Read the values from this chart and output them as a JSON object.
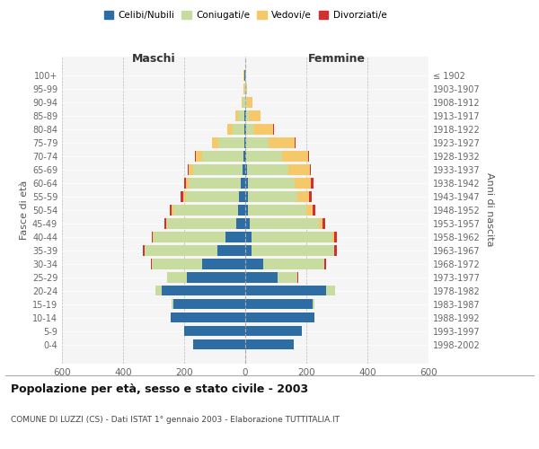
{
  "age_groups": [
    "100+",
    "95-99",
    "90-94",
    "85-89",
    "80-84",
    "75-79",
    "70-74",
    "65-69",
    "60-64",
    "55-59",
    "50-54",
    "45-49",
    "40-44",
    "35-39",
    "30-34",
    "25-29",
    "20-24",
    "15-19",
    "10-14",
    "5-9",
    "0-4"
  ],
  "birth_years": [
    "≤ 1902",
    "1903-1907",
    "1908-1912",
    "1913-1917",
    "1918-1922",
    "1923-1927",
    "1928-1932",
    "1933-1937",
    "1938-1942",
    "1943-1947",
    "1948-1952",
    "1953-1957",
    "1958-1962",
    "1963-1967",
    "1968-1972",
    "1973-1977",
    "1978-1982",
    "1983-1987",
    "1988-1992",
    "1993-1997",
    "1998-2002"
  ],
  "maschi": {
    "celibi": [
      2,
      1,
      1,
      2,
      2,
      3,
      5,
      10,
      15,
      20,
      25,
      30,
      65,
      90,
      140,
      190,
      275,
      235,
      245,
      200,
      170
    ],
    "coniugati": [
      2,
      3,
      8,
      22,
      38,
      85,
      135,
      160,
      170,
      175,
      210,
      225,
      235,
      240,
      165,
      65,
      20,
      5,
      0,
      0,
      0
    ],
    "vedovi": [
      1,
      1,
      4,
      9,
      20,
      22,
      22,
      16,
      10,
      8,
      5,
      3,
      2,
      0,
      0,
      0,
      0,
      0,
      0,
      0,
      0
    ],
    "divorziati": [
      0,
      0,
      0,
      0,
      0,
      0,
      2,
      3,
      6,
      10,
      8,
      7,
      5,
      5,
      5,
      2,
      0,
      0,
      0,
      0,
      0
    ]
  },
  "femmine": {
    "nubili": [
      1,
      1,
      1,
      2,
      2,
      2,
      2,
      5,
      8,
      10,
      10,
      15,
      20,
      20,
      60,
      105,
      265,
      220,
      225,
      185,
      160
    ],
    "coniugate": [
      1,
      2,
      5,
      10,
      25,
      75,
      120,
      135,
      155,
      160,
      190,
      225,
      265,
      270,
      200,
      65,
      30,
      5,
      0,
      0,
      0
    ],
    "vedove": [
      2,
      4,
      18,
      38,
      65,
      85,
      85,
      72,
      52,
      38,
      22,
      14,
      6,
      2,
      0,
      0,
      0,
      0,
      0,
      0,
      0
    ],
    "divorziate": [
      0,
      0,
      0,
      0,
      2,
      2,
      3,
      4,
      9,
      10,
      8,
      8,
      10,
      8,
      5,
      3,
      0,
      0,
      0,
      0,
      0
    ]
  },
  "colors": {
    "celibi": "#2E6DA4",
    "coniugati": "#C8DCA0",
    "vedovi": "#F5C96A",
    "divorziati": "#D13030"
  },
  "xlim": 600,
  "title": "Popolazione per età, sesso e stato civile - 2003",
  "subtitle": "COMUNE DI LUZZI (CS) - Dati ISTAT 1° gennaio 2003 - Elaborazione TUTTITALIA.IT",
  "ylabel_left": "Fasce di età",
  "ylabel_right": "Anni di nascita",
  "xlabel_left": "Maschi",
  "xlabel_right": "Femmine",
  "legend_labels": [
    "Celibi/Nubili",
    "Coniugati/e",
    "Vedovi/e",
    "Divorziati/e"
  ],
  "bg_color": "#f5f5f5"
}
